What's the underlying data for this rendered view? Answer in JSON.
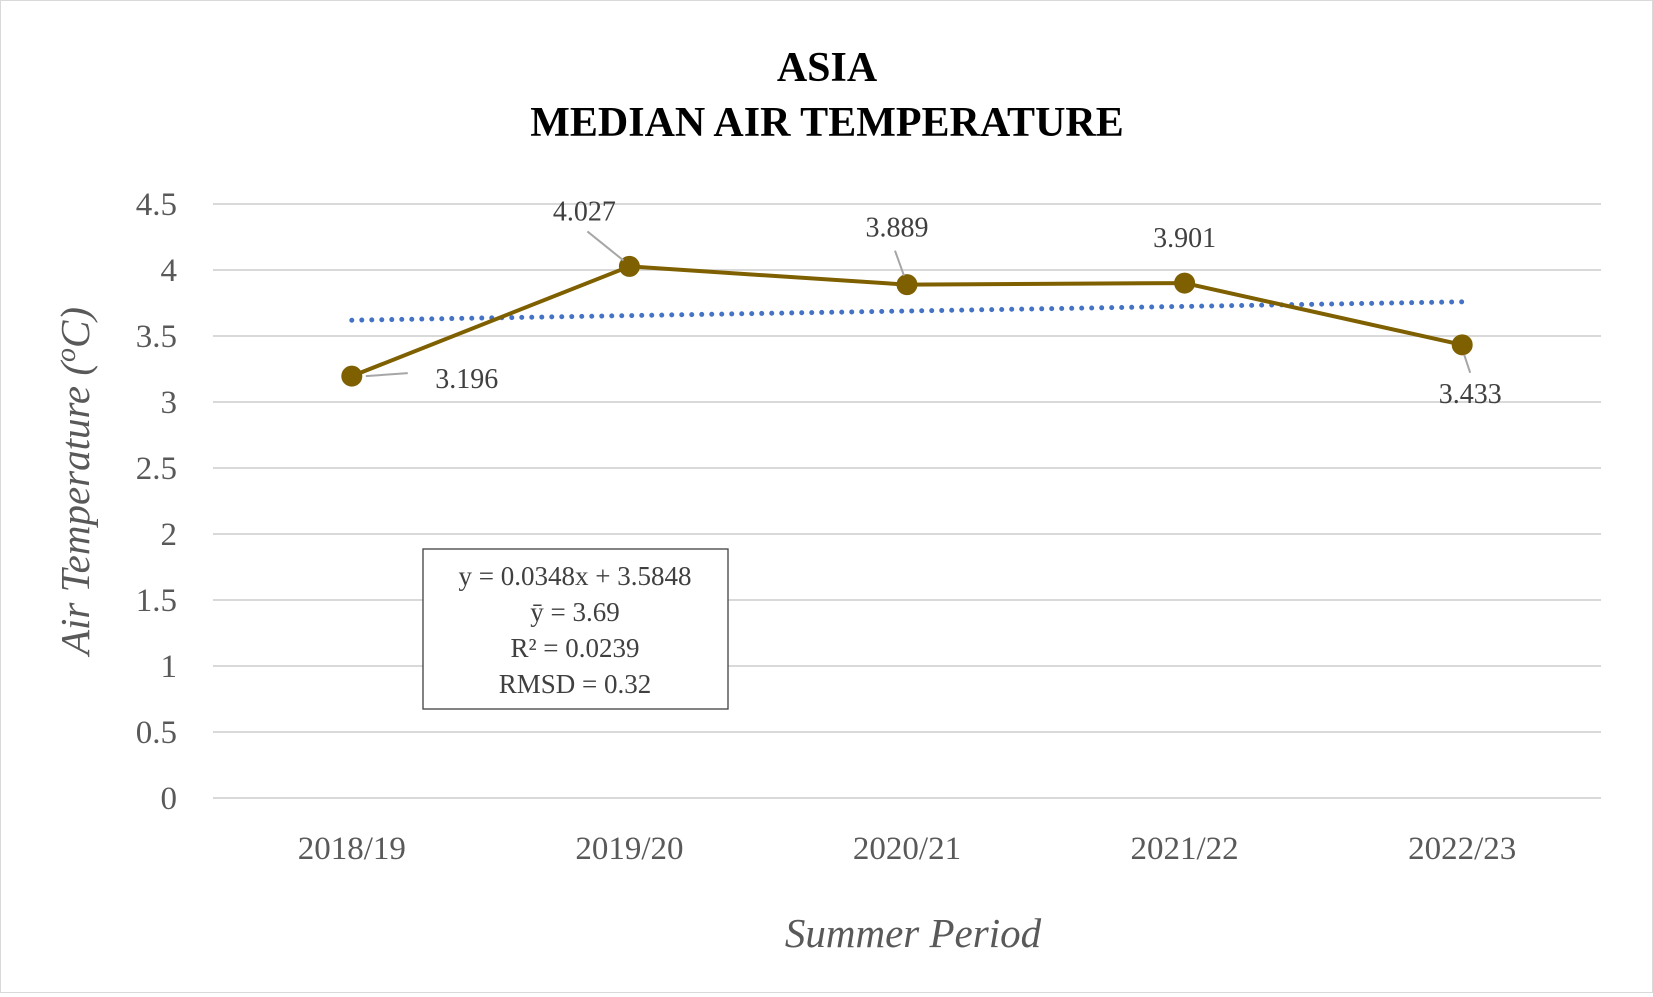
{
  "chart_data": {
    "type": "line",
    "title": [
      "ASIA",
      "MEDIAN AIR TEMPERATURE"
    ],
    "xlabel": "Summer Period",
    "ylabel": "Air Temperature (oC)",
    "categories": [
      "2018/19",
      "2019/20",
      "2020/21",
      "2021/22",
      "2022/23"
    ],
    "series": [
      {
        "values": [
          3.196,
          4.027,
          3.889,
          3.901,
          3.433
        ],
        "data_labels": [
          "3.196",
          "4.027",
          "3.889",
          "3.901",
          "3.433"
        ],
        "color": "#7f6000"
      }
    ],
    "trendline": {
      "type": "linear",
      "slope": 0.0348,
      "intercept": 3.5848,
      "color": "#4472c4",
      "style": "dotted"
    },
    "ylim": [
      0,
      4.5
    ],
    "yticks": [
      "0",
      "0.5",
      "1",
      "1.5",
      "2",
      "2.5",
      "3",
      "3.5",
      "4",
      "4.5"
    ],
    "grid": true,
    "legend": "none",
    "stats_box": [
      "y = 0.0348x + 3.5848",
      "ȳ = 3.69",
      "R² = 0.0239",
      "RMSD = 0.32"
    ]
  }
}
